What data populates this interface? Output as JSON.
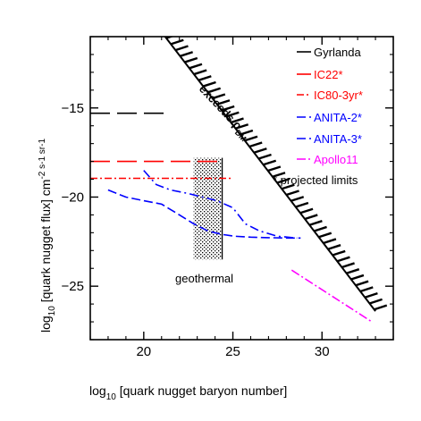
{
  "chart_data": {
    "type": "line",
    "xlabel_main": "log",
    "xlabel_sub": "10",
    "xlabel_rest": " [quark nugget baryon number]",
    "ylabel_main": "log",
    "ylabel_sub": "10",
    "ylabel_rest": " [quark nugget flux] cm",
    "ylabel_units": "-2 s-1 sr-1",
    "xlim": [
      17,
      34
    ],
    "ylim": [
      -28,
      -11
    ],
    "x_ticks": [
      20,
      25,
      30
    ],
    "y_ticks": [
      -15,
      -20,
      -25
    ],
    "x_tick_labels": [
      "20",
      "25",
      "30"
    ],
    "y_tick_labels": [
      "−15",
      "−20",
      "−25"
    ],
    "exceeds_line": [
      [
        21.2,
        -11
      ],
      [
        33,
        -26.4
      ]
    ],
    "exceeds_label": "exceeds ρ",
    "exceeds_label_sub": "DM",
    "geothermal_region": {
      "x": [
        22.8,
        24.4
      ],
      "y": [
        -23.5,
        -17.8
      ]
    },
    "geothermal_label": "geothermal",
    "series": [
      {
        "name": "Gyrlanda",
        "color": "#000000",
        "dash": "22,8",
        "x": [
          17,
          21.4
        ],
        "y": [
          -15.3,
          -15.3
        ]
      },
      {
        "name": "IC22*",
        "color": "#ff0000",
        "dash": "22,8",
        "x": [
          17,
          24.2
        ],
        "y": [
          -18.0,
          -18.0
        ]
      },
      {
        "name": "IC80-3yr*",
        "color": "#ff0000",
        "dash": "8,3,2,3",
        "x": [
          17,
          25.0
        ],
        "y": [
          -18.95,
          -18.95
        ]
      },
      {
        "name": "ANITA-2*",
        "color": "#0000ff",
        "dash": "10,4,2,4",
        "x": [
          20.0,
          20.7,
          21.5,
          22.5,
          23.3,
          24.1,
          25.0,
          25.7,
          26.5,
          27.5,
          28.6
        ],
        "y": [
          -18.5,
          -19.3,
          -19.6,
          -19.8,
          -20.0,
          -20.2,
          -20.6,
          -21.5,
          -21.9,
          -22.2,
          -22.3
        ]
      },
      {
        "name": "ANITA-3*",
        "color": "#0000ff",
        "dash": "10,4",
        "x": [
          18.0,
          19.0,
          20.0,
          21.0,
          22.0,
          22.8,
          23.6,
          24.4,
          25.1,
          26.0,
          27.0,
          28.0,
          28.8
        ],
        "y": [
          -19.6,
          -20.0,
          -20.2,
          -20.4,
          -21.0,
          -21.5,
          -21.9,
          -22.1,
          -22.2,
          -22.25,
          -22.28,
          -22.3,
          -22.3
        ]
      },
      {
        "name": "Apollo11",
        "color": "#ff00ff",
        "dash": "10,3,2,3",
        "x": [
          28.3,
          32.8
        ],
        "y": [
          -24.1,
          -27.0
        ]
      }
    ],
    "legend_note": "* projected limits"
  }
}
